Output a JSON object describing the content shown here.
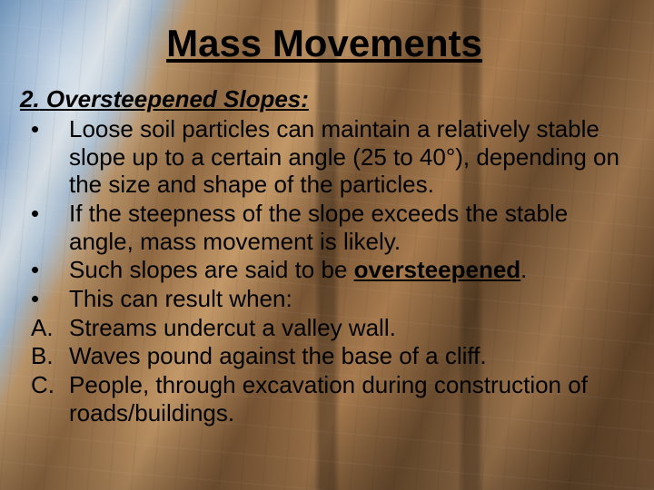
{
  "title": "Mass Movements",
  "section": {
    "number": "2.",
    "heading": "Oversteepened Slopes:"
  },
  "items": [
    {
      "marker": "•",
      "text": "Loose soil particles can maintain a relatively stable slope up to a certain angle (25 to 40°), depending on the size and shape of the particles."
    },
    {
      "marker": "•",
      "text": "If the steepness of the slope exceeds the stable angle, mass movement is likely."
    },
    {
      "marker": "•",
      "pre": "Such slopes are said to be ",
      "keyword": "oversteepened",
      "post": "."
    },
    {
      "marker": "•",
      "text": "This can result when:"
    },
    {
      "marker": "A.",
      "text": "Streams undercut a valley wall."
    },
    {
      "marker": "B.",
      "text": "Waves pound against the base of a cliff."
    },
    {
      "marker": "C.",
      "text": "People, through excavation during construction of roads/buildings."
    }
  ]
}
